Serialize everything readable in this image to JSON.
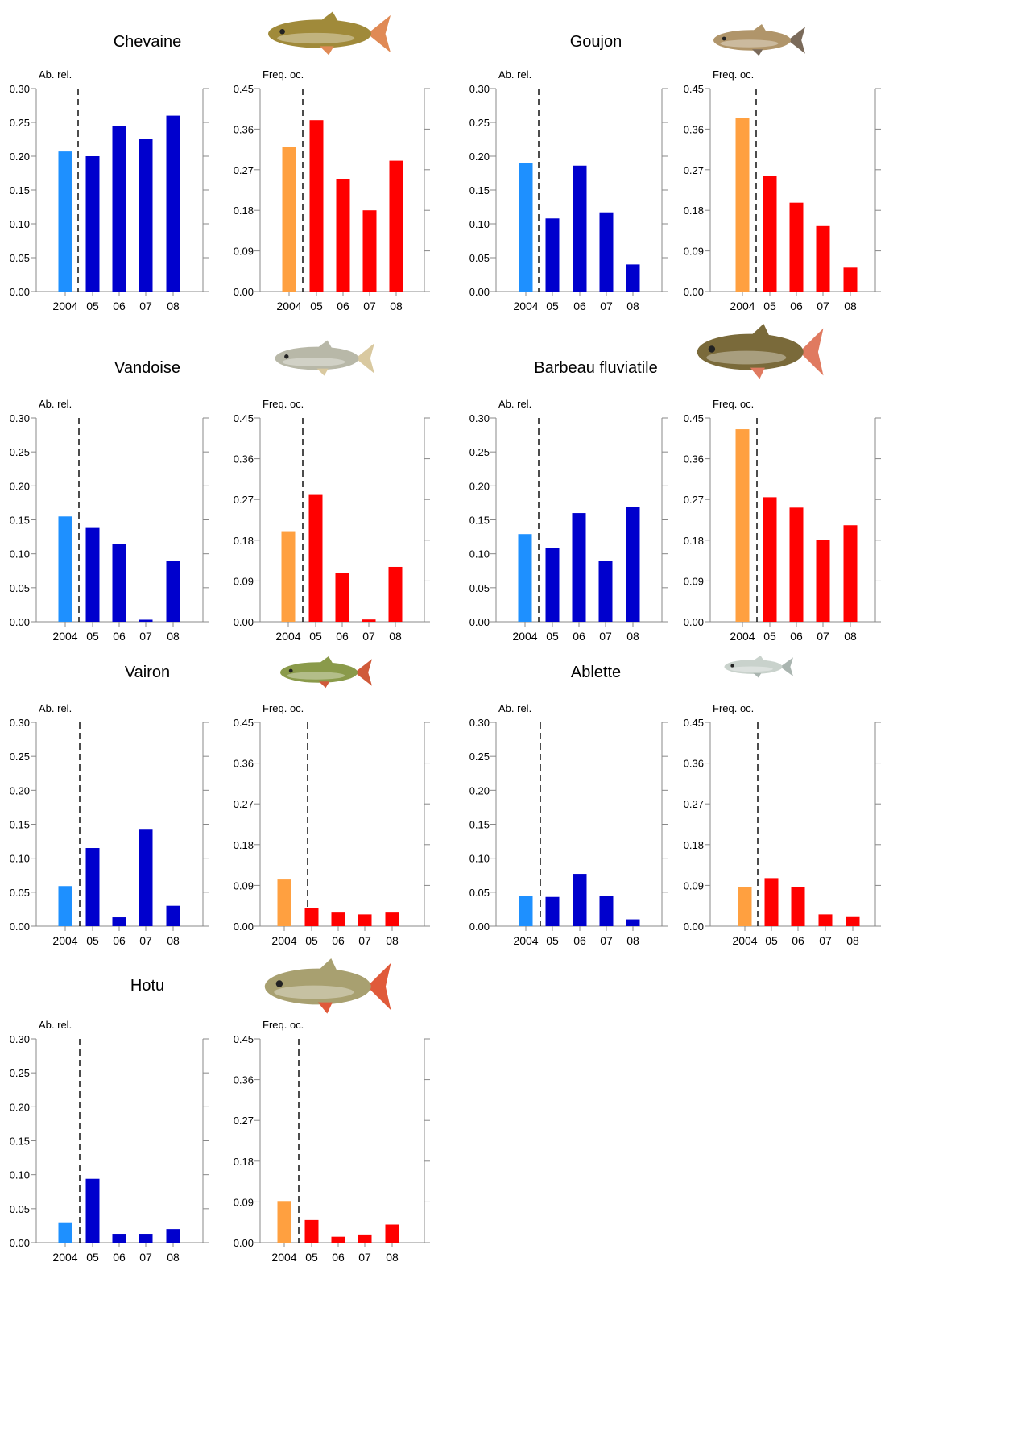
{
  "figure": {
    "x_tick_labels": [
      "2004",
      "05",
      "06",
      "07",
      "08"
    ],
    "ab_label": "Ab. rel.",
    "freq_label": "Freq. oc.",
    "ab_ticks": [
      "0.00",
      "0.05",
      "0.10",
      "0.15",
      "0.20",
      "0.25",
      "0.30"
    ],
    "freq_ticks": [
      "0.00",
      "0.09",
      "0.18",
      "0.27",
      "0.36",
      "0.45"
    ],
    "colors": {
      "ab_2004": "#1e90ff",
      "ab_later": "#0000cd",
      "freq_2004": "#ffa040",
      "freq_later": "#ff0000",
      "axis": "#888888",
      "divider": "#000000"
    }
  },
  "chart_data": [
    {
      "type": "bar",
      "species": "Chevaine",
      "fish_icon": "chub-fish-icon",
      "ylabel": "Ab. rel.",
      "categories": [
        "2004",
        "05",
        "06",
        "07",
        "08"
      ],
      "values": [
        0.207,
        0.2,
        0.245,
        0.225,
        0.26
      ],
      "ylim": [
        0,
        0.3
      ]
    },
    {
      "type": "bar",
      "species": "Chevaine",
      "ylabel": "Freq. oc.",
      "categories": [
        "2004",
        "05",
        "06",
        "07",
        "08"
      ],
      "values": [
        0.32,
        0.38,
        0.25,
        0.18,
        0.29
      ],
      "ylim": [
        0,
        0.45
      ]
    },
    {
      "type": "bar",
      "species": "Goujon",
      "fish_icon": "gudgeon-fish-icon",
      "ylabel": "Ab. rel.",
      "categories": [
        "2004",
        "05",
        "06",
        "07",
        "08"
      ],
      "values": [
        0.19,
        0.108,
        0.186,
        0.117,
        0.04
      ],
      "ylim": [
        0,
        0.3
      ]
    },
    {
      "type": "bar",
      "species": "Goujon",
      "ylabel": "Freq. oc.",
      "categories": [
        "2004",
        "05",
        "06",
        "07",
        "08"
      ],
      "values": [
        0.385,
        0.257,
        0.197,
        0.145,
        0.053
      ],
      "ylim": [
        0,
        0.45
      ]
    },
    {
      "type": "bar",
      "species": "Vandoise",
      "fish_icon": "dace-fish-icon",
      "ylabel": "Ab. rel.",
      "categories": [
        "2004",
        "05",
        "06",
        "07",
        "08"
      ],
      "values": [
        0.155,
        0.138,
        0.114,
        0.003,
        0.09
      ],
      "ylim": [
        0,
        0.3
      ]
    },
    {
      "type": "bar",
      "species": "Vandoise",
      "ylabel": "Freq. oc.",
      "categories": [
        "2004",
        "05",
        "06",
        "07",
        "08"
      ],
      "values": [
        0.2,
        0.28,
        0.107,
        0.005,
        0.121
      ],
      "ylim": [
        0,
        0.45
      ]
    },
    {
      "type": "bar",
      "species": "Barbeau fluviatile",
      "fish_icon": "barbel-fish-icon",
      "ylabel": "Ab. rel.",
      "categories": [
        "2004",
        "05",
        "06",
        "07",
        "08"
      ],
      "values": [
        0.129,
        0.109,
        0.16,
        0.09,
        0.169
      ],
      "ylim": [
        0,
        0.3
      ]
    },
    {
      "type": "bar",
      "species": "Barbeau fluviatile",
      "ylabel": "Freq. oc.",
      "categories": [
        "2004",
        "05",
        "06",
        "07",
        "08"
      ],
      "values": [
        0.425,
        0.275,
        0.252,
        0.18,
        0.213
      ],
      "ylim": [
        0,
        0.45
      ]
    },
    {
      "type": "bar",
      "species": "Vairon",
      "fish_icon": "minnow-fish-icon",
      "ylabel": "Ab. rel.",
      "categories": [
        "2004",
        "05",
        "06",
        "07",
        "08"
      ],
      "values": [
        0.059,
        0.115,
        0.013,
        0.142,
        0.03
      ],
      "ylim": [
        0,
        0.3
      ]
    },
    {
      "type": "bar",
      "species": "Vairon",
      "ylabel": "Freq. oc.",
      "categories": [
        "2004",
        "05",
        "06",
        "07",
        "08"
      ],
      "values": [
        0.103,
        0.04,
        0.03,
        0.026,
        0.03
      ],
      "ylim": [
        0,
        0.45
      ]
    },
    {
      "type": "bar",
      "species": "Ablette",
      "fish_icon": "bleak-fish-icon",
      "ylabel": "Ab. rel.",
      "categories": [
        "2004",
        "05",
        "06",
        "07",
        "08"
      ],
      "values": [
        0.044,
        0.043,
        0.077,
        0.045,
        0.01
      ],
      "ylim": [
        0,
        0.3
      ]
    },
    {
      "type": "bar",
      "species": "Ablette",
      "ylabel": "Freq. oc.",
      "categories": [
        "2004",
        "05",
        "06",
        "07",
        "08"
      ],
      "values": [
        0.087,
        0.106,
        0.087,
        0.026,
        0.02
      ],
      "ylim": [
        0,
        0.45
      ]
    },
    {
      "type": "bar",
      "species": "Hotu",
      "fish_icon": "nase-fish-icon",
      "ylabel": "Ab. rel.",
      "categories": [
        "2004",
        "05",
        "06",
        "07",
        "08"
      ],
      "values": [
        0.03,
        0.094,
        0.013,
        0.013,
        0.02
      ],
      "ylim": [
        0,
        0.3
      ]
    },
    {
      "type": "bar",
      "species": "Hotu",
      "ylabel": "Freq. oc.",
      "categories": [
        "2004",
        "05",
        "06",
        "07",
        "08"
      ],
      "values": [
        0.092,
        0.05,
        0.013,
        0.018,
        0.04
      ],
      "ylim": [
        0,
        0.45
      ]
    }
  ]
}
